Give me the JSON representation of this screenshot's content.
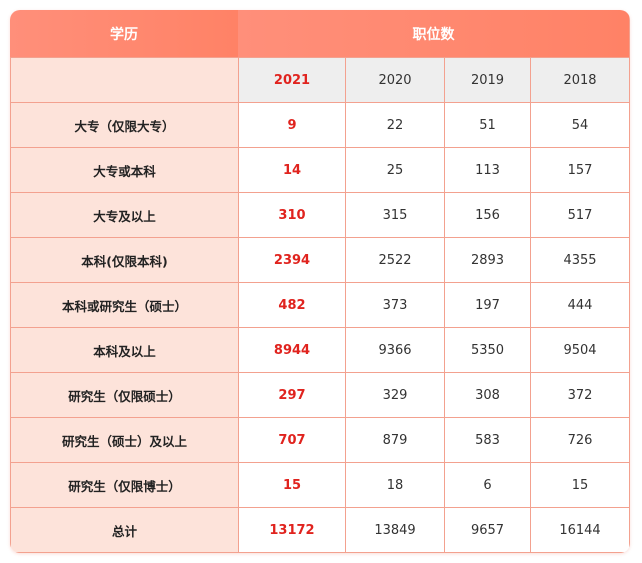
{
  "header": {
    "education_label": "学历",
    "positions_label": "职位数"
  },
  "years": [
    "2021",
    "2020",
    "2019",
    "2018"
  ],
  "rows": [
    {
      "label": "大专（仅限大专）",
      "values": [
        "9",
        "22",
        "51",
        "54"
      ]
    },
    {
      "label": "大专或本科",
      "values": [
        "14",
        "25",
        "113",
        "157"
      ]
    },
    {
      "label": "大专及以上",
      "values": [
        "310",
        "315",
        "156",
        "517"
      ]
    },
    {
      "label": "本科(仅限本科)",
      "values": [
        "2394",
        "2522",
        "2893",
        "4355"
      ]
    },
    {
      "label": "本科或研究生（硕士）",
      "values": [
        "482",
        "373",
        "197",
        "444"
      ]
    },
    {
      "label": "本科及以上",
      "values": [
        "8944",
        "9366",
        "5350",
        "9504"
      ]
    },
    {
      "label": "研究生（仅限硕士）",
      "values": [
        "297",
        "329",
        "308",
        "372"
      ]
    },
    {
      "label": "研究生（硕士）及以上",
      "values": [
        "707",
        "879",
        "583",
        "726"
      ]
    },
    {
      "label": "研究生（仅限博士）",
      "values": [
        "15",
        "18",
        "6",
        "15"
      ]
    },
    {
      "label": "总计",
      "values": [
        "13172",
        "13849",
        "9657",
        "16144"
      ]
    }
  ],
  "colors": {
    "header_gradient_start": "#ff8f7a",
    "header_gradient_end": "#ff8266",
    "label_bg": "#fde3da",
    "year_row_bg": "#eeeeee",
    "border": "#f3a18f",
    "highlight_text": "#e0231e"
  }
}
